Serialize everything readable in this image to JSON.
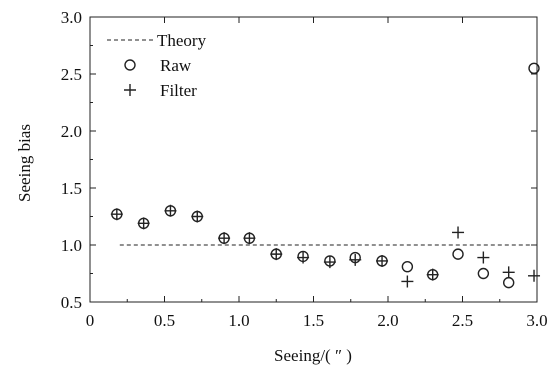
{
  "chart_data": {
    "type": "scatter",
    "xlabel": "Seeing/( ″ )",
    "ylabel": "Seeing bias",
    "xlim": [
      0,
      3.0
    ],
    "ylim": [
      0.5,
      3.0
    ],
    "x_ticks": [
      "0",
      "0.5",
      "1.0",
      "1.5",
      "2.0",
      "2.5",
      "3.0"
    ],
    "y_ticks": [
      "0.5",
      "1.0",
      "1.5",
      "2.0",
      "2.5",
      "3.0"
    ],
    "grid": false,
    "legend_position": "top-left",
    "series": [
      {
        "name": "Theory",
        "style": "dashed-line",
        "x": [
          0.2,
          3.0
        ],
        "y": [
          1.0,
          1.0
        ]
      },
      {
        "name": "Raw",
        "marker": "circle",
        "x": [
          0.18,
          0.36,
          0.54,
          0.72,
          0.9,
          1.07,
          1.25,
          1.43,
          1.61,
          1.78,
          1.96,
          2.13,
          2.3,
          2.47,
          2.64,
          2.81,
          2.98
        ],
        "y": [
          1.27,
          1.19,
          1.3,
          1.25,
          1.06,
          1.06,
          0.92,
          0.9,
          0.86,
          0.89,
          0.86,
          0.81,
          0.74,
          0.92,
          0.75,
          0.67,
          2.55
        ]
      },
      {
        "name": "Filter",
        "marker": "plus",
        "x": [
          0.18,
          0.36,
          0.54,
          0.72,
          0.9,
          1.07,
          1.25,
          1.43,
          1.61,
          1.78,
          1.96,
          2.13,
          2.3,
          2.47,
          2.64,
          2.81,
          2.98
        ],
        "y": [
          1.27,
          1.19,
          1.3,
          1.25,
          1.06,
          1.06,
          0.92,
          0.89,
          0.85,
          0.87,
          0.86,
          0.68,
          0.74,
          1.11,
          0.89,
          0.76,
          0.73
        ]
      }
    ]
  }
}
